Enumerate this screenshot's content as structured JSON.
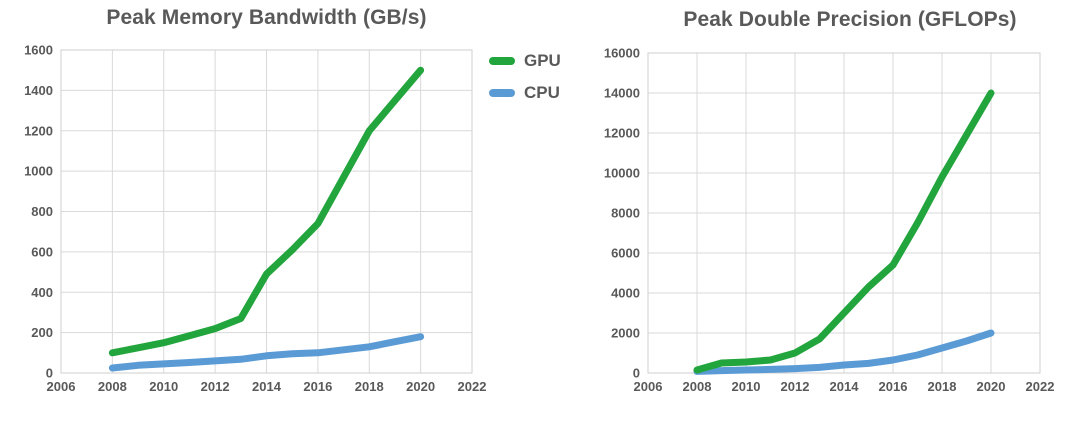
{
  "figure": {
    "background": "#ffffff"
  },
  "colors": {
    "gpu": "#22a53c",
    "cpu": "#5b9bd5",
    "title_text": "#595959",
    "axis_text": "#595959",
    "gridline": "#d9d9d9",
    "plot_border": "#cfcfcf",
    "background": "#ffffff"
  },
  "legend": {
    "position": "between-charts-top",
    "items": [
      {
        "label": "GPU",
        "color": "#22a53c"
      },
      {
        "label": "CPU",
        "color": "#5b9bd5"
      }
    ]
  },
  "chart_data": [
    {
      "type": "line",
      "title": "Peak Memory Bandwidth (GB/s)",
      "xlabel": "",
      "ylabel": "",
      "xlim": [
        2006,
        2022
      ],
      "ylim": [
        0,
        1600
      ],
      "x_ticks": [
        2006,
        2008,
        2010,
        2012,
        2014,
        2016,
        2018,
        2020,
        2022
      ],
      "y_ticks": [
        0,
        200,
        400,
        600,
        800,
        1000,
        1200,
        1400,
        1600
      ],
      "grid": true,
      "x": [
        2008,
        2009,
        2010,
        2011,
        2012,
        2013,
        2014,
        2015,
        2016,
        2017,
        2018,
        2019,
        2020
      ],
      "series": [
        {
          "name": "GPU",
          "color_key": "gpu",
          "values": [
            100,
            125,
            150,
            185,
            220,
            270,
            490,
            610,
            740,
            970,
            1200,
            1350,
            1500
          ]
        },
        {
          "name": "CPU",
          "color_key": "cpu",
          "values": [
            25,
            38,
            45,
            52,
            60,
            68,
            85,
            95,
            100,
            115,
            130,
            155,
            180
          ]
        }
      ]
    },
    {
      "type": "line",
      "title": "Peak Double Precision (GFLOPs)",
      "xlabel": "",
      "ylabel": "",
      "xlim": [
        2006,
        2022
      ],
      "ylim": [
        0,
        16000
      ],
      "x_ticks": [
        2006,
        2008,
        2010,
        2012,
        2014,
        2016,
        2018,
        2020,
        2022
      ],
      "y_ticks": [
        0,
        2000,
        4000,
        6000,
        8000,
        10000,
        12000,
        14000,
        16000
      ],
      "grid": true,
      "x": [
        2008,
        2009,
        2010,
        2011,
        2012,
        2013,
        2014,
        2015,
        2016,
        2017,
        2018,
        2019,
        2020
      ],
      "series": [
        {
          "name": "GPU",
          "color_key": "gpu",
          "values": [
            150,
            500,
            550,
            650,
            1000,
            1700,
            3000,
            4300,
            5400,
            7500,
            9800,
            11900,
            14000
          ]
        },
        {
          "name": "CPU",
          "color_key": "cpu",
          "values": [
            80,
            120,
            150,
            180,
            220,
            280,
            400,
            480,
            650,
            900,
            1250,
            1600,
            2000
          ]
        }
      ]
    }
  ]
}
